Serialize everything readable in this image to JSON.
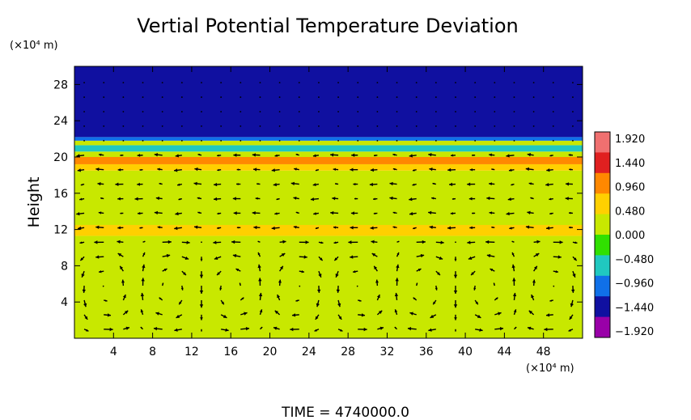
{
  "chart_data": {
    "type": "heatmap",
    "title": "Vertial Potential Temperature Deviation",
    "xlabel": "",
    "ylabel": "Height",
    "x_unit_label": "(×10⁴ m)",
    "y_unit_label": "(×10⁴ m)",
    "xlim": [
      0,
      52
    ],
    "ylim": [
      0,
      30
    ],
    "x_ticks": [
      4,
      8,
      12,
      16,
      20,
      24,
      28,
      32,
      36,
      40,
      44,
      48
    ],
    "y_ticks": [
      4,
      8,
      12,
      16,
      20,
      24,
      28
    ],
    "colorbar": {
      "labels": [
        "1.920",
        "1.440",
        "0.960",
        "0.480",
        "0.000",
        "−0.480",
        "−0.960",
        "−1.440",
        "−1.920"
      ],
      "values": [
        1.92,
        1.44,
        0.96,
        0.48,
        0.0,
        -0.48,
        -0.96,
        -1.44,
        -1.92
      ],
      "colors": [
        "#f07070",
        "#e02020",
        "#ff8800",
        "#ffd000",
        "#c8e800",
        "#30e000",
        "#20c8c0",
        "#1070e8",
        "#1010a0",
        "#9900a8"
      ]
    },
    "bands": [
      {
        "y_from": 0,
        "y_to": 11.3,
        "value": 0.0
      },
      {
        "y_from": 11.3,
        "y_to": 12.5,
        "value": 0.7
      },
      {
        "y_from": 12.5,
        "y_to": 18.5,
        "value": 0.35
      },
      {
        "y_from": 18.5,
        "y_to": 19.2,
        "value": 0.9
      },
      {
        "y_from": 19.2,
        "y_to": 20.0,
        "value": 1.3
      },
      {
        "y_from": 20.0,
        "y_to": 20.6,
        "value": 0.3
      },
      {
        "y_from": 20.6,
        "y_to": 21.3,
        "value": -0.6
      },
      {
        "y_from": 21.3,
        "y_to": 21.8,
        "value": 0.0
      },
      {
        "y_from": 21.8,
        "y_to": 22.2,
        "value": -1.2
      },
      {
        "y_from": 22.2,
        "y_to": 30.0,
        "value": -1.92
      }
    ],
    "footer": "TIME  =  4740000.0"
  },
  "colors": {
    "text": "#000000",
    "background": "#ffffff",
    "arrow": "#000000"
  }
}
